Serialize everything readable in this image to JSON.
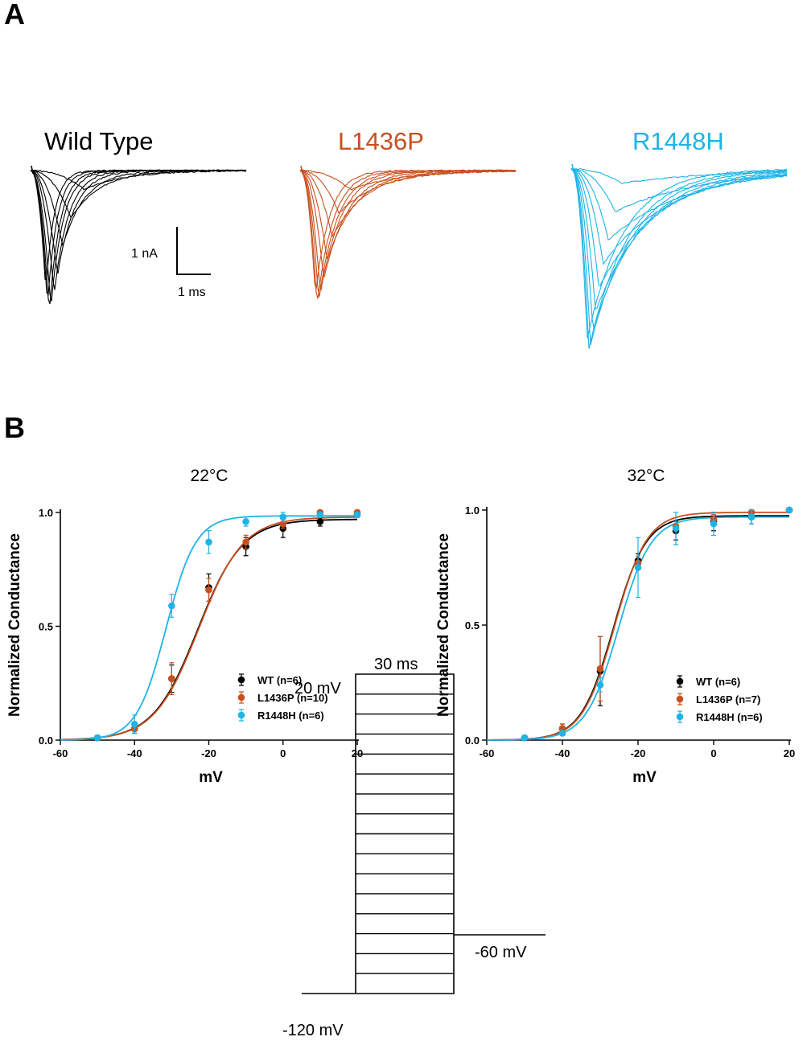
{
  "panels": {
    "a": "A",
    "b": "B"
  },
  "colors": {
    "wt": "#000000",
    "l1436p": "#c8501e",
    "r1448h": "#1eb4e6"
  },
  "traces": {
    "titles": [
      "Wild Type",
      "L1436P",
      "R1448H"
    ],
    "scale_current": "1 nA",
    "scale_time": "1 ms",
    "series": [
      {
        "name": "Wild Type",
        "color_key": "wt",
        "peaks_nA": [
          0.4,
          1.0,
          1.6,
          2.2,
          2.6,
          2.9,
          3.0,
          2.85,
          2.55
        ],
        "peak_ms": [
          1.6,
          1.2,
          0.95,
          0.8,
          0.7,
          0.6,
          0.55,
          0.5,
          0.45
        ],
        "tau_ms": [
          1.2,
          0.85,
          0.65,
          0.5,
          0.42,
          0.36,
          0.32,
          0.28,
          0.25
        ]
      },
      {
        "name": "L1436P",
        "color_key": "l1436p",
        "peaks_nA": [
          0.4,
          0.9,
          1.4,
          1.9,
          2.3,
          2.6,
          2.75,
          2.85,
          2.65
        ],
        "peak_ms": [
          1.5,
          1.15,
          0.95,
          0.8,
          0.7,
          0.6,
          0.55,
          0.5,
          0.45
        ],
        "tau_ms": [
          1.5,
          1.2,
          1.0,
          0.85,
          0.72,
          0.62,
          0.55,
          0.48,
          0.42
        ]
      },
      {
        "name": "R1448H",
        "color_key": "r1448h",
        "peaks_nA": [
          0.3,
          0.9,
          1.5,
          2.0,
          2.5,
          3.0,
          3.4,
          3.7,
          3.8,
          3.6
        ],
        "peak_ms": [
          1.5,
          1.3,
          1.1,
          0.95,
          0.82,
          0.72,
          0.64,
          0.57,
          0.52,
          0.47
        ],
        "tau_ms": [
          3.0,
          2.6,
          2.3,
          2.0,
          1.8,
          1.6,
          1.45,
          1.3,
          1.2,
          1.1
        ]
      }
    ]
  },
  "chart_data": [
    {
      "type": "scatter",
      "title": "22°C",
      "xlabel": "mV",
      "ylabel": "Normalized Conductance",
      "xlim": [
        -60,
        20
      ],
      "ylim": [
        0,
        1
      ],
      "xticks": [
        "-60",
        "-40",
        "-20",
        "0",
        "20"
      ],
      "yticks": [
        "0.0",
        "0.5",
        "1.0"
      ],
      "series": [
        {
          "name": "WT (n=6)",
          "color_key": "wt",
          "x": [
            -50,
            -40,
            -30,
            -20,
            -10,
            0,
            10,
            20
          ],
          "y": [
            0.01,
            0.05,
            0.27,
            0.67,
            0.85,
            0.93,
            0.96,
            0.99
          ],
          "err": [
            0.01,
            0.02,
            0.06,
            0.06,
            0.04,
            0.04,
            0.02,
            0.01
          ],
          "fit": {
            "v_half": -23.0,
            "k": 6.0,
            "max": 0.97
          }
        },
        {
          "name": "L1436P (n=10)",
          "color_key": "l1436p",
          "x": [
            -50,
            -40,
            -30,
            -20,
            -10,
            0,
            10,
            20
          ],
          "y": [
            0.01,
            0.05,
            0.27,
            0.66,
            0.87,
            0.95,
            1.0,
            1.0
          ],
          "err": [
            0.01,
            0.02,
            0.07,
            0.05,
            0.03,
            0.02,
            0.01,
            0.01
          ],
          "fit": {
            "v_half": -22.7,
            "k": 6.0,
            "max": 0.98
          }
        },
        {
          "name": "R1448H (n=6)",
          "color_key": "r1448h",
          "x": [
            -50,
            -40,
            -30,
            -20,
            -10,
            0,
            10,
            20
          ],
          "y": [
            0.01,
            0.07,
            0.59,
            0.87,
            0.96,
            0.98,
            0.99,
            0.99
          ],
          "err": [
            0.01,
            0.04,
            0.05,
            0.05,
            0.02,
            0.02,
            0.01,
            0.01
          ],
          "fit": {
            "v_half": -31.5,
            "k": 4.0,
            "max": 0.985
          }
        }
      ],
      "legend_position": "bottom-right"
    },
    {
      "type": "scatter",
      "title": "32°C",
      "xlabel": "mV",
      "ylabel": "Normalized Conductance",
      "xlim": [
        -60,
        20
      ],
      "ylim": [
        0,
        1
      ],
      "xticks": [
        "-60",
        "-40",
        "-20",
        "0",
        "20"
      ],
      "yticks": [
        "0.0",
        "0.5",
        "1.0"
      ],
      "series": [
        {
          "name": "WT (n=6)",
          "color_key": "wt",
          "x": [
            -50,
            -40,
            -30,
            -20,
            -10,
            0,
            10,
            20
          ],
          "y": [
            0.01,
            0.05,
            0.3,
            0.78,
            0.91,
            0.95,
            0.97,
            1.0
          ],
          "err": [
            0.01,
            0.02,
            0.15,
            0.03,
            0.04,
            0.04,
            0.03,
            0.01
          ],
          "fit": {
            "v_half": -26.5,
            "k": 4.3,
            "max": 0.975
          }
        },
        {
          "name": "L1436P (n=7)",
          "color_key": "l1436p",
          "x": [
            -50,
            -40,
            -30,
            -20,
            -10,
            0,
            10,
            20
          ],
          "y": [
            0.01,
            0.05,
            0.31,
            0.77,
            0.93,
            0.96,
            0.99,
            1.0
          ],
          "err": [
            0.01,
            0.02,
            0.14,
            0.03,
            0.02,
            0.02,
            0.01,
            0.01
          ],
          "fit": {
            "v_half": -26.2,
            "k": 4.3,
            "max": 0.99
          }
        },
        {
          "name": "R1448H (n=6)",
          "color_key": "r1448h",
          "x": [
            -50,
            -40,
            -30,
            -20,
            -10,
            0,
            10,
            20
          ],
          "y": [
            0.01,
            0.03,
            0.24,
            0.75,
            0.92,
            0.94,
            0.97,
            1.0
          ],
          "err": [
            0.01,
            0.01,
            0.03,
            0.13,
            0.07,
            0.05,
            0.03,
            0.01
          ],
          "fit": {
            "v_half": -25.2,
            "k": 4.3,
            "max": 0.97
          }
        }
      ],
      "legend_position": "bottom-right"
    }
  ],
  "protocol": {
    "top_voltage": "20 mV",
    "duration": "30 ms",
    "holding_after": "-60 mV",
    "holding_before": "-120 mV",
    "steps": 17
  }
}
